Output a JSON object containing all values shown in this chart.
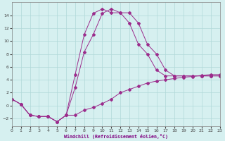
{
  "xlabel": "Windchill (Refroidissement éolien,°C)",
  "background_color": "#d6f0f0",
  "grid_color": "#b0d8d8",
  "line_color": "#9b2c8c",
  "xlim": [
    0,
    23
  ],
  "ylim": [
    -3.2,
    16
  ],
  "xticks": [
    0,
    1,
    2,
    3,
    4,
    5,
    6,
    7,
    8,
    9,
    10,
    11,
    12,
    13,
    14,
    15,
    16,
    17,
    18,
    19,
    20,
    21,
    22,
    23
  ],
  "yticks": [
    -2,
    0,
    2,
    4,
    6,
    8,
    10,
    12,
    14
  ],
  "line1_x": [
    0,
    1,
    2,
    3,
    4,
    5,
    6,
    7,
    8,
    9,
    10,
    11,
    12,
    13,
    14,
    15,
    16,
    17,
    18,
    19,
    20,
    21,
    22,
    23
  ],
  "line1_y": [
    1.0,
    0.2,
    -1.5,
    -1.7,
    -1.7,
    -2.5,
    -1.5,
    -1.5,
    -0.7,
    -0.3,
    0.3,
    1.0,
    2.0,
    2.5,
    3.0,
    3.5,
    3.8,
    4.0,
    4.2,
    4.4,
    4.5,
    4.7,
    4.8,
    4.8
  ],
  "line2_x": [
    0,
    1,
    2,
    3,
    4,
    5,
    6,
    7,
    8,
    9,
    10,
    11,
    12,
    13,
    14,
    15,
    16,
    17,
    18,
    19,
    20,
    21,
    22,
    23
  ],
  "line2_y": [
    1.0,
    0.2,
    -1.5,
    -1.7,
    -1.7,
    -2.5,
    -1.5,
    4.8,
    11.0,
    14.3,
    15.0,
    14.4,
    14.4,
    12.8,
    9.5,
    8.0,
    5.5,
    4.6,
    4.6,
    4.6,
    4.6,
    4.6,
    4.6,
    4.6
  ],
  "line3_x": [
    0,
    1,
    2,
    3,
    4,
    5,
    6,
    7,
    8,
    9,
    10,
    11,
    12,
    13,
    14,
    15,
    16,
    17,
    18,
    19,
    20,
    21,
    22,
    23
  ],
  "line3_y": [
    1.0,
    0.2,
    -1.5,
    -1.7,
    -1.7,
    -2.5,
    -1.5,
    2.8,
    8.3,
    11.0,
    14.3,
    15.0,
    14.4,
    14.4,
    12.8,
    9.5,
    8.0,
    5.5,
    4.6,
    4.6,
    4.6,
    4.6,
    4.6,
    4.6
  ]
}
